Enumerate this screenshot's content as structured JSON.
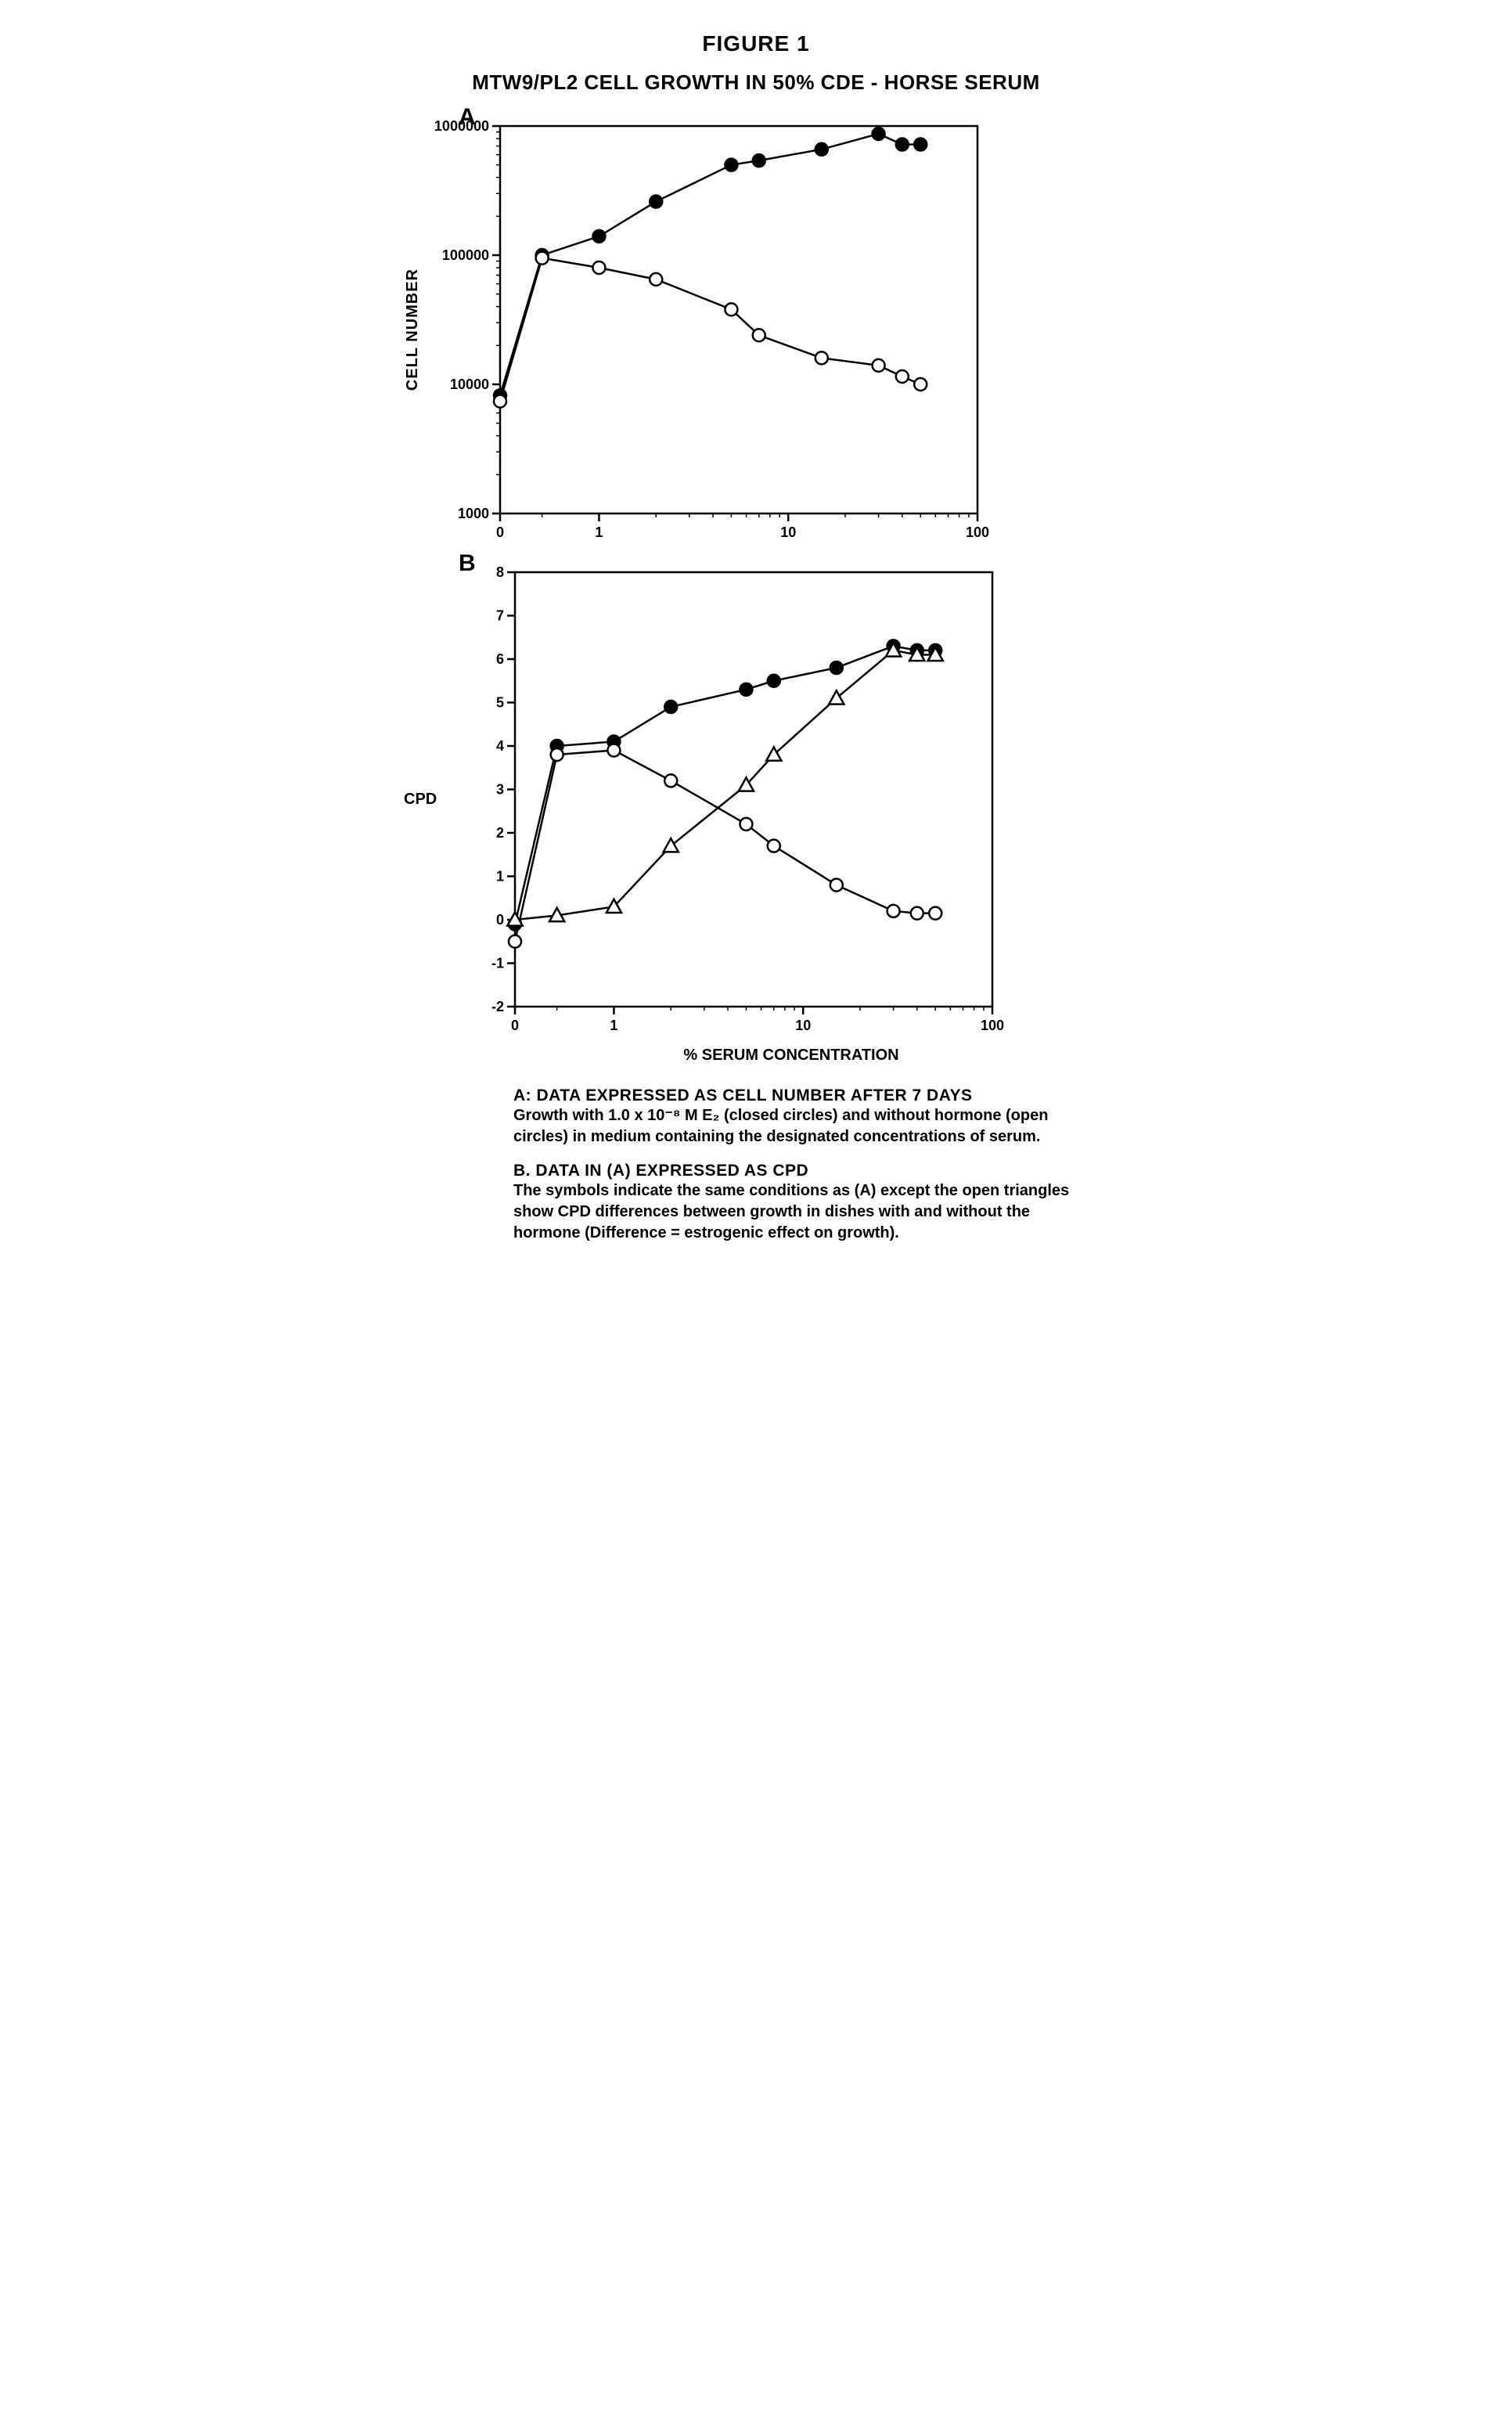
{
  "figure_title": "FIGURE  1",
  "subtitle": "MTW9/PL2 CELL GROWTH  IN 50% CDE - HORSE SERUM",
  "xlabel": "% SERUM CONCENTRATION",
  "colors": {
    "bg": "#ffffff",
    "ink": "#000000",
    "marker_fill_closed": "#000000",
    "marker_fill_open": "#ffffff",
    "line": "#000000"
  },
  "panelA": {
    "label": "A",
    "ylabel": "CELL NUMBER",
    "type": "line-scatter",
    "xscale": "log",
    "yscale": "log",
    "xlim": [
      0,
      100
    ],
    "ylim": [
      1000,
      1000000
    ],
    "xticks": [
      0,
      1,
      10,
      100
    ],
    "yticks": [
      1000,
      10000,
      100000,
      1000000
    ],
    "line_width": 2.5,
    "marker_radius": 8,
    "marker_stroke": 2.5,
    "series": {
      "closed": {
        "marker": "filled-circle",
        "x": [
          0,
          0.5,
          1,
          2,
          5,
          7,
          15,
          30,
          40,
          50
        ],
        "y": [
          8200,
          100000,
          140000,
          260000,
          500000,
          540000,
          660000,
          870000,
          720000,
          720000
        ]
      },
      "open": {
        "marker": "open-circle",
        "x": [
          0,
          0.5,
          1,
          2,
          5,
          7,
          15,
          30,
          40,
          50
        ],
        "y": [
          7400,
          95000,
          80000,
          65000,
          38000,
          24000,
          16000,
          14000,
          11500,
          10000
        ]
      }
    }
  },
  "panelB": {
    "label": "B",
    "ylabel": "CPD",
    "type": "line-scatter",
    "xscale": "log",
    "yscale": "linear",
    "xlim": [
      0,
      100
    ],
    "ylim": [
      -2,
      8
    ],
    "xticks": [
      0,
      1,
      10,
      100
    ],
    "yticks": [
      -2,
      -1,
      0,
      1,
      2,
      3,
      4,
      5,
      6,
      7,
      8
    ],
    "line_width": 2.5,
    "marker_radius": 8,
    "marker_stroke": 2.5,
    "series": {
      "closed": {
        "marker": "filled-circle",
        "x": [
          0,
          0.5,
          1,
          2,
          5,
          7,
          15,
          30,
          40,
          50
        ],
        "y": [
          -0.1,
          4.0,
          4.1,
          4.9,
          5.3,
          5.5,
          5.8,
          6.3,
          6.2,
          6.2
        ]
      },
      "open": {
        "marker": "open-circle",
        "x": [
          0,
          0.5,
          1,
          2,
          5,
          7,
          15,
          30,
          40,
          50
        ],
        "y": [
          -0.5,
          3.8,
          3.9,
          3.2,
          2.2,
          1.7,
          0.8,
          0.2,
          0.15,
          0.15
        ]
      },
      "triangle": {
        "marker": "open-triangle",
        "x": [
          0,
          0.5,
          1,
          2,
          5,
          7,
          15,
          30,
          40,
          50
        ],
        "y": [
          0.0,
          0.1,
          0.3,
          1.7,
          3.1,
          3.8,
          5.1,
          6.2,
          6.1,
          6.1
        ]
      }
    }
  },
  "captions": {
    "A": {
      "head": "A:  DATA EXPRESSED AS CELL NUMBER AFTER 7 DAYS",
      "body": "Growth with 1.0 x 10⁻⁸ M  E₂  (closed circles) and without hormone (open circles) in medium containing the designated concentrations of serum."
    },
    "B": {
      "head": "B.  DATA IN (A) EXPRESSED AS CPD",
      "body": "The symbols indicate the same conditions as (A) except the open triangles show CPD differences between growth in dishes with and without the hormone (Difference = estrogenic effect on growth)."
    }
  }
}
